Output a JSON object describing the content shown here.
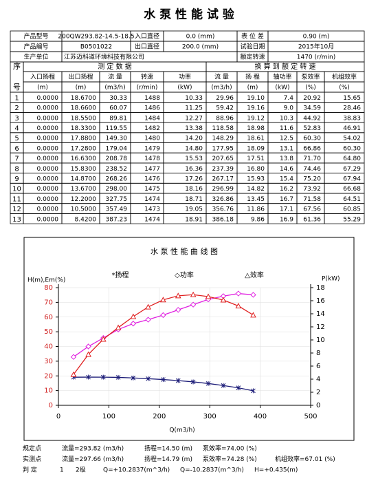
{
  "title": "水 泵 性 能 试 验",
  "info": [
    [
      "产品型号",
      "200QW293.82-14.5-18.5",
      "入口直径",
      "0.0 (mm)",
      "表 位 差",
      "0.90 (m)"
    ],
    [
      "产品编号",
      "B0501022",
      "出口直径",
      "200.0 (mm)",
      "试验日期",
      "2015年10月"
    ],
    [
      "生产单位",
      "江苏迈科道环境科技有限公司",
      "额定转速",
      "1470 (r/min)"
    ]
  ],
  "table": {
    "index_header": [
      "序",
      "号"
    ],
    "group_headers": [
      "测 定 数 据",
      "换 算 到 额 定 转 速"
    ],
    "columns": [
      "入口扬程",
      "出口扬程",
      "流 量",
      "转速",
      "功率",
      "流 量",
      "扬 程",
      "轴功率",
      "泵效率",
      "机组效率"
    ],
    "units": [
      "(m)",
      "(m)",
      "(m3/h)",
      "(r/min)",
      "(kW)",
      "(m3/h)",
      "(m)",
      "(kW)",
      "(%)",
      "(%)"
    ],
    "rows": [
      [
        "1",
        "0.0000",
        "18.6700",
        "30.33",
        "1488",
        "10.33",
        "29.96",
        "19.10",
        "7.4",
        "20.92",
        "15.65"
      ],
      [
        "2",
        "0.0000",
        "18.6600",
        "60.07",
        "1486",
        "11.25",
        "59.42",
        "19.16",
        "9.0",
        "34.59",
        "28.46"
      ],
      [
        "3",
        "0.0000",
        "18.5500",
        "89.81",
        "1484",
        "12.27",
        "88.96",
        "19.12",
        "10.3",
        "44.92",
        "38.83"
      ],
      [
        "4",
        "0.0000",
        "18.3300",
        "119.55",
        "1482",
        "13.38",
        "118.58",
        "18.98",
        "11.6",
        "52.83",
        "46.91"
      ],
      [
        "5",
        "0.0000",
        "17.8800",
        "149.30",
        "1480",
        "14.20",
        "148.29",
        "18.61",
        "12.5",
        "60.30",
        "54.02"
      ],
      [
        "6",
        "0.0000",
        "17.2800",
        "179.04",
        "1479",
        "14.80",
        "177.95",
        "18.09",
        "13.1",
        "66.86",
        "60.30"
      ],
      [
        "7",
        "0.0000",
        "16.6300",
        "208.78",
        "1478",
        "15.53",
        "207.65",
        "17.51",
        "13.8",
        "71.70",
        "64.80"
      ],
      [
        "8",
        "0.0000",
        "15.8300",
        "238.52",
        "1477",
        "16.36",
        "237.39",
        "16.80",
        "14.6",
        "74.46",
        "67.29"
      ],
      [
        "9",
        "0.0000",
        "14.8700",
        "268.26",
        "1476",
        "17.26",
        "267.17",
        "15.93",
        "15.4",
        "75.20",
        "67.94"
      ],
      [
        "10",
        "0.0000",
        "13.6700",
        "298.00",
        "1475",
        "18.16",
        "296.99",
        "14.82",
        "16.2",
        "73.92",
        "66.68"
      ],
      [
        "11",
        "0.0000",
        "12.2000",
        "327.75",
        "1474",
        "18.71",
        "326.86",
        "13.45",
        "16.7",
        "71.58",
        "64.51"
      ],
      [
        "12",
        "0.0000",
        "10.5000",
        "357.49",
        "1473",
        "19.05",
        "356.76",
        "11.86",
        "17.1",
        "67.56",
        "60.85"
      ],
      [
        "13",
        "0.0000",
        "8.4200",
        "387.23",
        "1474",
        "18.91",
        "386.18",
        "9.86",
        "16.9",
        "61.36",
        "55.29"
      ]
    ]
  },
  "chart_data": {
    "type": "line",
    "title": "水 泵 性 能 曲 线 图",
    "xlabel": "Q(m3/h)",
    "ylabel": "H(m),Em(%)",
    "y2label": "P(kW)",
    "x": [
      29.96,
      59.42,
      88.96,
      118.58,
      148.29,
      177.95,
      207.65,
      237.39,
      267.17,
      296.99,
      326.86,
      356.76,
      386.18
    ],
    "series": [
      {
        "name": "*扬程",
        "color": "#1c1c78",
        "marker": "star",
        "axis": "y",
        "values": [
          19.1,
          19.16,
          19.12,
          18.98,
          18.61,
          18.09,
          17.51,
          16.8,
          15.93,
          14.82,
          13.45,
          11.86,
          9.86
        ]
      },
      {
        "name": "◇功率",
        "color": "#e020e0",
        "marker": "diamond",
        "axis": "y2",
        "values": [
          7.4,
          9.0,
          10.3,
          11.6,
          12.5,
          13.1,
          13.8,
          14.6,
          15.4,
          16.2,
          16.7,
          17.1,
          16.9
        ]
      },
      {
        "name": "△效率",
        "color": "#e02020",
        "marker": "triangle",
        "axis": "y",
        "values": [
          20.92,
          34.59,
          44.92,
          52.83,
          60.3,
          66.86,
          71.7,
          74.46,
          75.2,
          73.92,
          71.58,
          67.56,
          61.36
        ]
      }
    ],
    "xlim": [
      0,
      500
    ],
    "xticks": [
      0,
      100,
      200,
      300,
      400,
      500
    ],
    "ylim": [
      0,
      80
    ],
    "yticks": [
      0,
      10,
      20,
      30,
      40,
      50,
      60,
      70,
      80
    ],
    "y2lim": [
      0,
      18
    ],
    "y2ticks": [
      0,
      2,
      4,
      6,
      8,
      10,
      12,
      14,
      16,
      18
    ],
    "grid": true
  },
  "footer": [
    [
      "规定点",
      "流量=293.82 (m3/h)",
      "扬程=14.50 (m)",
      "泵效率=74.00 (%)"
    ],
    [
      "实测点",
      "流量=297.66 (m3/h)",
      "扬程=14.79 (m)",
      "泵效率=74.28 (%)",
      "机组效率=67.01 (%)"
    ],
    [
      "判 定",
      "1",
      "2级",
      "Q=+10.2837(m^3/h)",
      "Q=-10.2837(m^3/h)",
      "H=+0.435(m)"
    ]
  ]
}
